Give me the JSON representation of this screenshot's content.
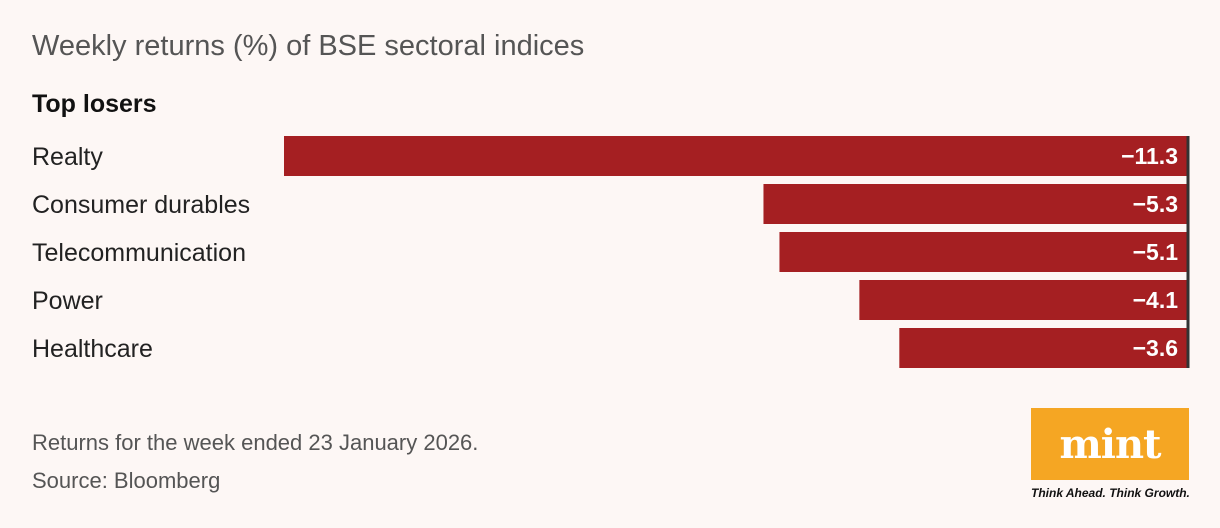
{
  "header": {
    "title": "Weekly returns (%) of BSE sectoral indices",
    "subtitle": "Top losers"
  },
  "chart_data": {
    "type": "bar",
    "orientation": "horizontal",
    "title": "Weekly returns (%) of BSE sectoral indices",
    "subtitle": "Top losers",
    "categories": [
      "Realty",
      "Consumer durables",
      "Telecommunication",
      "Power",
      "Healthcare"
    ],
    "values": [
      -11.3,
      -5.3,
      -5.1,
      -4.1,
      -3.6
    ],
    "value_labels": [
      "−11.3",
      "−5.3",
      "−5.1",
      "−4.1",
      "−3.6"
    ],
    "xlim": [
      -11.3,
      0
    ],
    "bar_color": "#a51f22",
    "grid": false
  },
  "footer": {
    "note": "Returns for the week ended 23 January 2026.",
    "source": "Source: Bloomberg"
  },
  "logo": {
    "text": "mint",
    "tagline": "Think Ahead. Think Growth.",
    "color": "#f5a623"
  }
}
